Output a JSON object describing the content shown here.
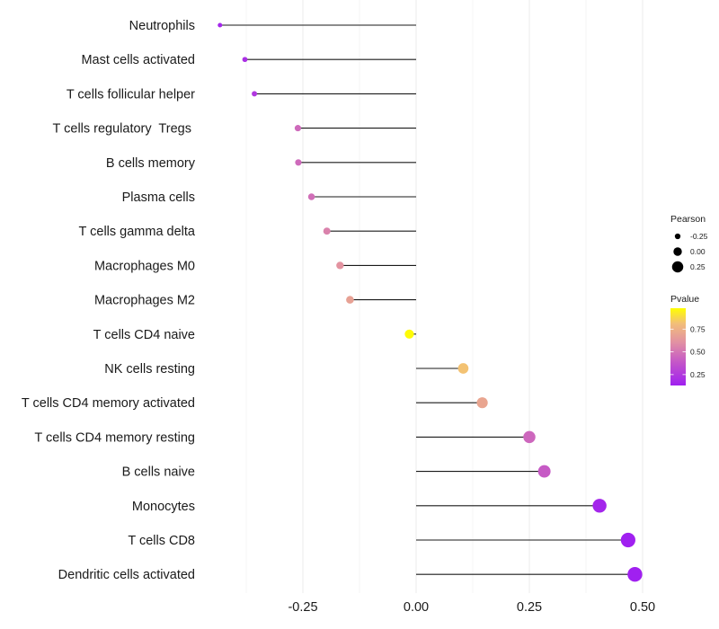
{
  "chart_data": {
    "type": "lollipop",
    "title": "",
    "xlabel": "",
    "ylabel": "",
    "xlim": [
      -0.455,
      0.52
    ],
    "x_ticks": [
      -0.25,
      0.0,
      0.25,
      0.5
    ],
    "x_tick_labels": [
      "-0.25",
      "0.00",
      "0.25",
      "0.50"
    ],
    "grid": true,
    "categories": [
      "Neutrophils",
      "Mast cells activated",
      "T cells follicular helper",
      "T cells regulatory  Tregs ",
      "B cells memory",
      "Plasma cells",
      "T cells gamma delta",
      "Macrophages M0",
      "Macrophages M2",
      "T cells CD4 naive",
      "NK cells resting",
      "T cells CD4 memory activated",
      "T cells CD4 memory resting",
      "B cells naive",
      "Monocytes",
      "T cells CD8",
      "Dendritic cells activated"
    ],
    "series": [
      {
        "name": "Pearson",
        "values": [
          -0.433,
          -0.378,
          -0.357,
          -0.261,
          -0.26,
          -0.231,
          -0.197,
          -0.168,
          -0.146,
          -0.015,
          0.104,
          0.146,
          0.25,
          0.283,
          0.405,
          0.468,
          0.483
        ]
      },
      {
        "name": "Pvalue",
        "values": [
          0.16,
          0.2,
          0.24,
          0.46,
          0.46,
          0.48,
          0.55,
          0.62,
          0.68,
          0.97,
          0.82,
          0.7,
          0.45,
          0.4,
          0.16,
          0.12,
          0.12
        ]
      }
    ],
    "legend": {
      "position": "right",
      "size": {
        "title": "Pearson",
        "entries": [
          {
            "label": "-0.25",
            "value": -0.25
          },
          {
            "label": "0.00",
            "value": 0.0
          },
          {
            "label": "0.25",
            "value": 0.25
          }
        ]
      },
      "color": {
        "title": "Pvalue",
        "range": [
          0.13,
          0.98
        ],
        "ticks": [
          0.25,
          0.5,
          0.75
        ],
        "tick_labels": [
          "0.25",
          "0.50",
          "0.75"
        ],
        "low_color": "#A020F0",
        "mid_color": "#D080B0",
        "high_color": "#FFFF00"
      }
    }
  }
}
